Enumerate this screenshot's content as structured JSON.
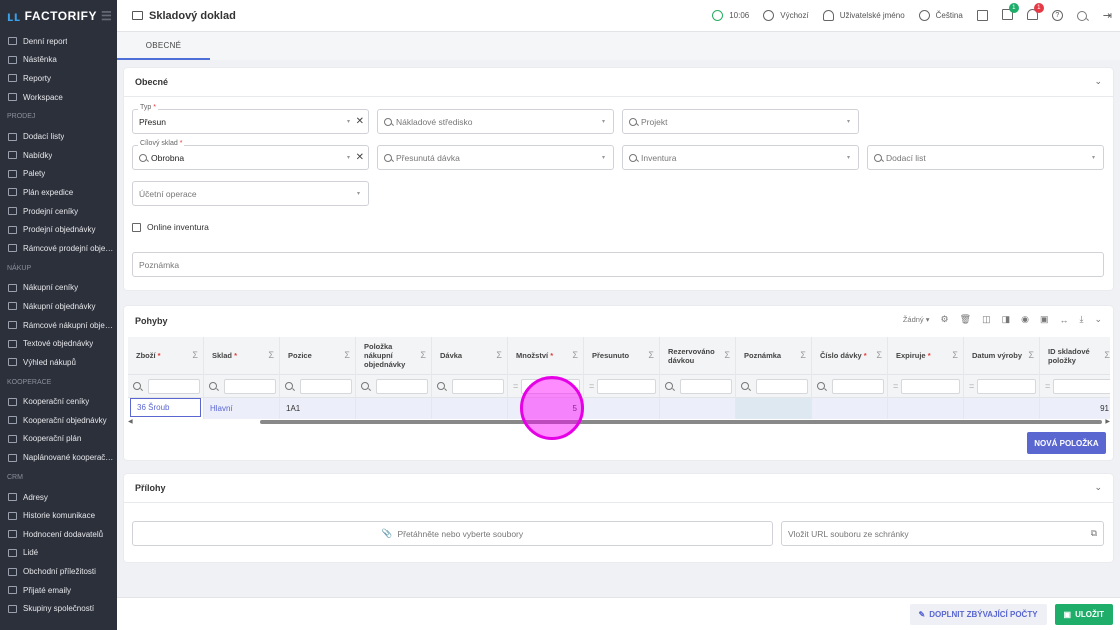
{
  "app": {
    "logo": "FACTORIFY",
    "title": "Skladový doklad"
  },
  "sidebar": {
    "items": [
      {
        "label": "Denní report"
      },
      {
        "label": "Nástěnka"
      },
      {
        "label": "Reporty"
      },
      {
        "label": "Workspace"
      },
      {
        "section": "PRODEJ"
      },
      {
        "label": "Dodací listy"
      },
      {
        "label": "Nabídky"
      },
      {
        "label": "Palety"
      },
      {
        "label": "Plán expedice"
      },
      {
        "label": "Prodejní ceníky"
      },
      {
        "label": "Prodejní objednávky"
      },
      {
        "label": "Rámcové prodejní objed..."
      },
      {
        "section": "NÁKUP"
      },
      {
        "label": "Nákupní ceníky"
      },
      {
        "label": "Nákupní objednávky"
      },
      {
        "label": "Rámcové nákupní objed..."
      },
      {
        "label": "Textové objednávky"
      },
      {
        "label": "Výhled nákupů"
      },
      {
        "section": "KOOPERACE"
      },
      {
        "label": "Kooperační ceníky"
      },
      {
        "label": "Kooperační objednávky"
      },
      {
        "label": "Kooperační plán"
      },
      {
        "label": "Naplánované kooperačn..."
      },
      {
        "section": "CRM"
      },
      {
        "label": "Adresy"
      },
      {
        "label": "Historie komunikace"
      },
      {
        "label": "Hodnocení dodavatelů"
      },
      {
        "label": "Lidé"
      },
      {
        "label": "Obchodní příležitosti"
      },
      {
        "label": "Přijaté emaily"
      },
      {
        "label": "Skupiny společností"
      }
    ]
  },
  "header": {
    "time": "10:06",
    "currency": "Výchozí",
    "user": "Uživatelské jméno",
    "language": "Čeština",
    "gift_badge": "1",
    "bell_badge": "1"
  },
  "tabs": [
    "OBECNÉ"
  ],
  "general": {
    "title": "Obecné",
    "typ_label": "Typ",
    "typ_value": "Přesun",
    "cost_center_ph": "Nákladové středisko",
    "project_ph": "Projekt",
    "target_label": "Cílový sklad",
    "target_value": "Obrobna",
    "batch_ph": "Přesunutá dávka",
    "inventory_ph": "Inventura",
    "delivery_ph": "Dodací list",
    "accounting_ph": "Účetní operace",
    "online_inventory": "Online inventura",
    "note_ph": "Poznámka"
  },
  "movements": {
    "title": "Pohyby",
    "view_select": "Žádný",
    "columns": [
      {
        "label": "Zboží",
        "req": true
      },
      {
        "label": "Sklad",
        "req": true
      },
      {
        "label": "Pozice"
      },
      {
        "label": "Položka nákupní objednávky"
      },
      {
        "label": "Dávka"
      },
      {
        "label": "Množství",
        "req": true
      },
      {
        "label": "Přesunuto"
      },
      {
        "label": "Rezervováno dávkou"
      },
      {
        "label": "Poznámka"
      },
      {
        "label": "Číslo dávky",
        "req": true
      },
      {
        "label": "Expiruje",
        "req": true
      },
      {
        "label": "Datum výroby"
      },
      {
        "label": "ID skladové položky"
      }
    ],
    "filters": [
      "search",
      "search",
      "search",
      "search",
      "search",
      "equals",
      "equals",
      "search",
      "search",
      "search",
      "equals",
      "equals",
      "equals"
    ],
    "rows": [
      [
        "36 Šroub",
        "Hlavní",
        "1A1",
        "",
        "",
        "5",
        "",
        "",
        "",
        "",
        "",
        "",
        "91"
      ]
    ],
    "new_item": "NOVÁ POLOŽKA"
  },
  "attachments": {
    "title": "Přílohy",
    "drop": "Přetáhněte nebo vyberte soubory",
    "url_ph": "Vložit URL souboru ze schránky"
  },
  "footer": {
    "fill": "DOPLNIT ZBÝVAJÍCÍ POČTY",
    "save": "ULOŽIT"
  },
  "colors": {
    "sidebar": "#2c303b",
    "accent": "#4d6fd6",
    "primary_button": "#5a67d0",
    "save": "#1fae6a",
    "highlight": "#ff00ff"
  }
}
